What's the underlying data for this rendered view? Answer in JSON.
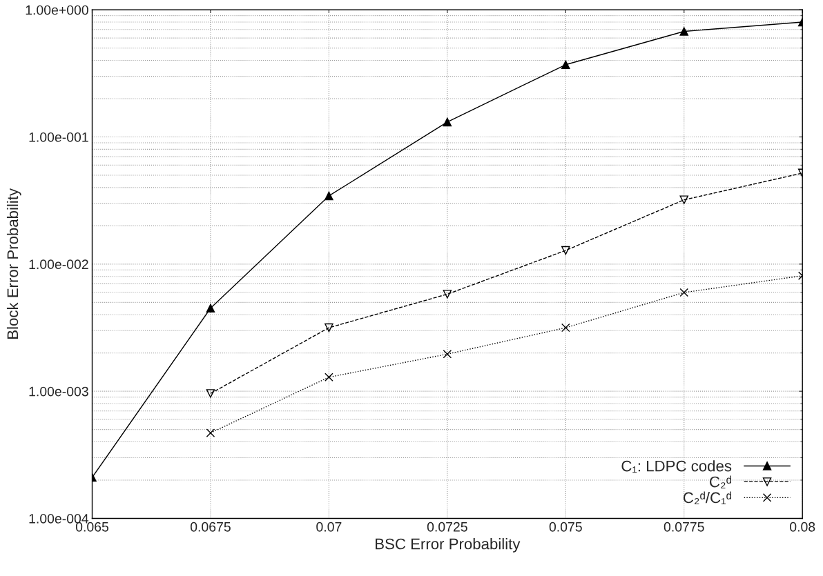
{
  "chart_data": {
    "type": "line",
    "xlabel": "BSC Error Probability",
    "ylabel": "Block Error Probability",
    "x": [
      0.065,
      0.0675,
      0.07,
      0.0725,
      0.075,
      0.0775,
      0.08
    ],
    "series": [
      {
        "name": "C₁: LDPC codes",
        "color": "#000000",
        "marker": "triangle",
        "line_style": "solid",
        "values": [
          0.00021,
          0.0045,
          0.0344,
          0.131,
          0.37,
          0.676,
          0.8
        ]
      },
      {
        "name": "C₂ᵈ",
        "color": "#000000",
        "marker": "triangle_down",
        "line_style": "dashed",
        "values": [
          null,
          0.00096,
          0.00316,
          0.0058,
          0.0128,
          0.032,
          0.052
        ]
      },
      {
        "name": "C₂ᵈ/C₁ᵈ",
        "color": "#000000",
        "marker": "cross",
        "line_style": "dotted",
        "values": [
          null,
          0.00047,
          0.00129,
          0.00196,
          0.00316,
          0.00598,
          0.0081
        ]
      }
    ],
    "log": "y",
    "xlim": [
      0.065,
      0.08
    ],
    "ylim": [
      0.0001,
      1
    ],
    "xticks": [
      0.065,
      0.0675,
      0.07,
      0.0725,
      0.075,
      0.0775,
      0.08
    ],
    "yticks": [
      {
        "value": 0.0001,
        "label": "1.00e-004"
      },
      {
        "value": 0.001,
        "label": "1.00e-003"
      },
      {
        "value": 0.01,
        "label": "1.00e-002"
      },
      {
        "value": 0.1,
        "label": "1.00e-001"
      },
      {
        "value": 1,
        "label": "1.00e+000"
      }
    ],
    "grid": true,
    "legend": "bottom right"
  }
}
